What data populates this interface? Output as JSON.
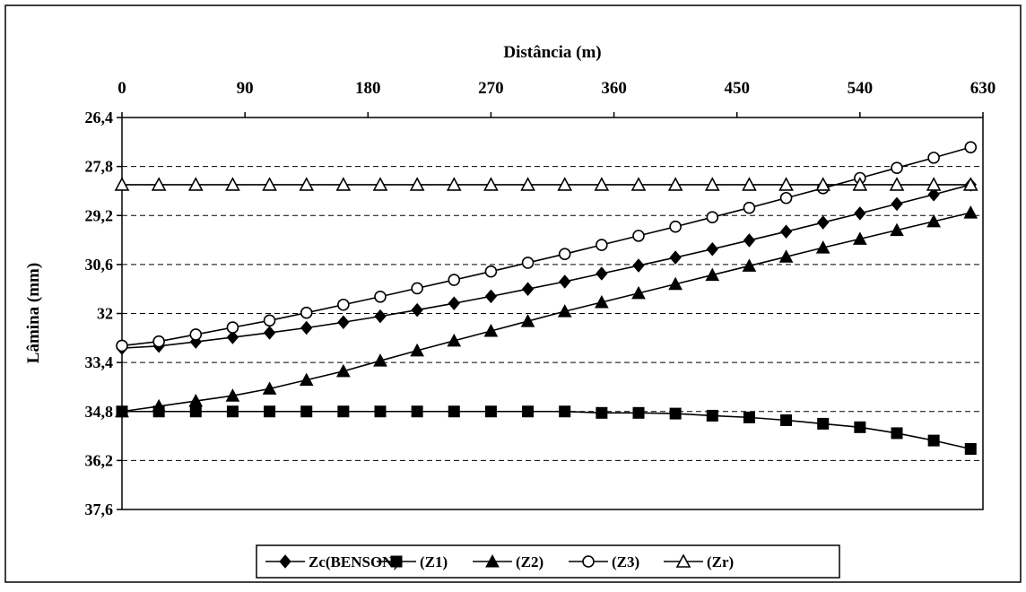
{
  "chart_data": {
    "type": "line",
    "title": "",
    "xlabel": "Distância (m)",
    "ylabel": "Lâmina (mm)",
    "x_axis_position": "top",
    "y_axis_reversed": true,
    "xlim": [
      0,
      630
    ],
    "ylim": [
      26.4,
      37.6
    ],
    "x_ticks": [
      0,
      90,
      180,
      270,
      360,
      450,
      540,
      630
    ],
    "x_tick_labels": [
      "0",
      "90",
      "180",
      "270",
      "360",
      "450",
      "540",
      "630"
    ],
    "y_ticks": [
      26.4,
      27.8,
      29.2,
      30.6,
      32.0,
      33.4,
      34.8,
      36.2,
      37.6
    ],
    "y_tick_labels": [
      "26,4",
      "27,8",
      "29,2",
      "30,6",
      "32",
      "33,4",
      "34,8",
      "36,2",
      "37,6"
    ],
    "grid": "horizontal",
    "legend_position": "bottom-center",
    "x": [
      0,
      27,
      54,
      81,
      108,
      135,
      162,
      189,
      216,
      243,
      270,
      297,
      324,
      351,
      378,
      405,
      432,
      459,
      486,
      513,
      540,
      567,
      594,
      621
    ],
    "series": [
      {
        "name": "Zc(BENSON)",
        "marker": "diamond",
        "color": "#000000",
        "values": [
          32.99,
          32.93,
          32.81,
          32.68,
          32.55,
          32.41,
          32.25,
          32.08,
          31.9,
          31.71,
          31.51,
          31.3,
          31.09,
          30.86,
          30.63,
          30.4,
          30.16,
          29.91,
          29.66,
          29.4,
          29.14,
          28.87,
          28.6,
          28.32
        ]
      },
      {
        "name": "(Z1)",
        "marker": "square",
        "color": "#000000",
        "values": [
          34.8,
          34.8,
          34.8,
          34.8,
          34.8,
          34.8,
          34.8,
          34.8,
          34.8,
          34.8,
          34.8,
          34.8,
          34.8,
          34.84,
          34.84,
          34.86,
          34.92,
          34.97,
          35.05,
          35.15,
          35.25,
          35.42,
          35.63,
          35.87
        ]
      },
      {
        "name": "(Z2)",
        "marker": "triangle-filled",
        "color": "#000000",
        "values": [
          34.8,
          34.65,
          34.5,
          34.35,
          34.15,
          33.9,
          33.65,
          33.35,
          33.06,
          32.78,
          32.5,
          32.22,
          31.94,
          31.68,
          31.42,
          31.16,
          30.9,
          30.64,
          30.38,
          30.12,
          29.87,
          29.62,
          29.37,
          29.12
        ]
      },
      {
        "name": "(Z3)",
        "marker": "circle-open",
        "color": "#000000",
        "values": [
          32.92,
          32.8,
          32.6,
          32.4,
          32.2,
          31.98,
          31.75,
          31.52,
          31.28,
          31.04,
          30.8,
          30.55,
          30.3,
          30.04,
          29.78,
          29.52,
          29.25,
          28.98,
          28.7,
          28.42,
          28.13,
          27.84,
          27.55,
          27.25
        ]
      },
      {
        "name": "(Zr)",
        "marker": "triangle-open",
        "color": "#000000",
        "values": [
          28.32,
          28.32,
          28.32,
          28.32,
          28.32,
          28.32,
          28.32,
          28.32,
          28.32,
          28.32,
          28.32,
          28.32,
          28.32,
          28.32,
          28.32,
          28.32,
          28.32,
          28.32,
          28.32,
          28.32,
          28.32,
          28.32,
          28.32,
          28.32
        ]
      }
    ]
  }
}
